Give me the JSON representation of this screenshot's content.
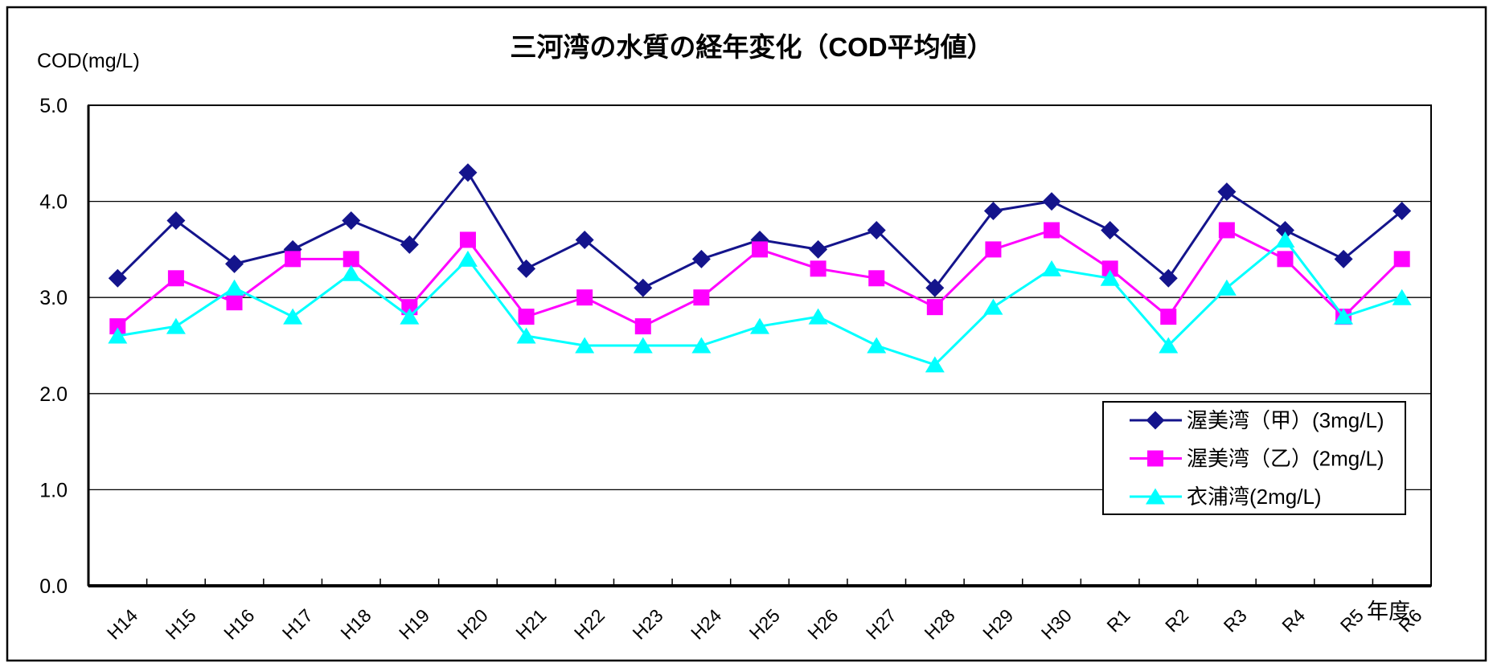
{
  "figure": {
    "title": "三河湾の水質の経年変化（COD平均値）",
    "y_unit_label": "COD(mg/L)",
    "x_unit_label": "年度"
  },
  "chart_data": {
    "type": "line",
    "title": "三河湾の水質の経年変化（COD平均値）",
    "ylabel": "COD(mg/L)",
    "xlabel": "年度",
    "ylim": [
      0,
      5
    ],
    "ytick_labels": [
      "0.0",
      "1.0",
      "2.0",
      "3.0",
      "4.0",
      "5.0"
    ],
    "grid": "horizontal",
    "legend_position": "inside-right",
    "categories": [
      "H14",
      "H15",
      "H16",
      "H17",
      "H18",
      "H19",
      "H20",
      "H21",
      "H22",
      "H23",
      "H24",
      "H25",
      "H26",
      "H27",
      "H28",
      "H29",
      "H30",
      "R1",
      "R2",
      "R3",
      "R4",
      "R5",
      "R6"
    ],
    "series": [
      {
        "name": "渥美湾（甲）(3mg/L)",
        "marker": "diamond",
        "color": "#14148C",
        "values": [
          3.2,
          3.8,
          3.35,
          3.5,
          3.8,
          3.55,
          4.3,
          3.3,
          3.6,
          3.1,
          3.4,
          3.6,
          3.5,
          3.7,
          3.1,
          3.9,
          4.0,
          3.7,
          3.2,
          4.1,
          3.7,
          3.4,
          3.9
        ]
      },
      {
        "name": "渥美湾（乙）(2mg/L)",
        "marker": "square",
        "color": "#FF00FF",
        "values": [
          2.7,
          3.2,
          2.95,
          3.4,
          3.4,
          2.9,
          3.6,
          2.8,
          3.0,
          2.7,
          3.0,
          3.5,
          3.3,
          3.2,
          2.9,
          3.5,
          3.7,
          3.3,
          2.8,
          3.7,
          3.4,
          2.8,
          3.4
        ]
      },
      {
        "name": "衣浦湾(2mg/L)",
        "marker": "triangle",
        "color": "#00FFFF",
        "values": [
          2.6,
          2.7,
          3.1,
          2.8,
          3.25,
          2.8,
          3.4,
          2.6,
          2.5,
          2.5,
          2.5,
          2.7,
          2.8,
          2.5,
          2.3,
          2.9,
          3.3,
          3.2,
          2.5,
          3.1,
          3.6,
          2.8,
          3.0
        ]
      }
    ]
  }
}
